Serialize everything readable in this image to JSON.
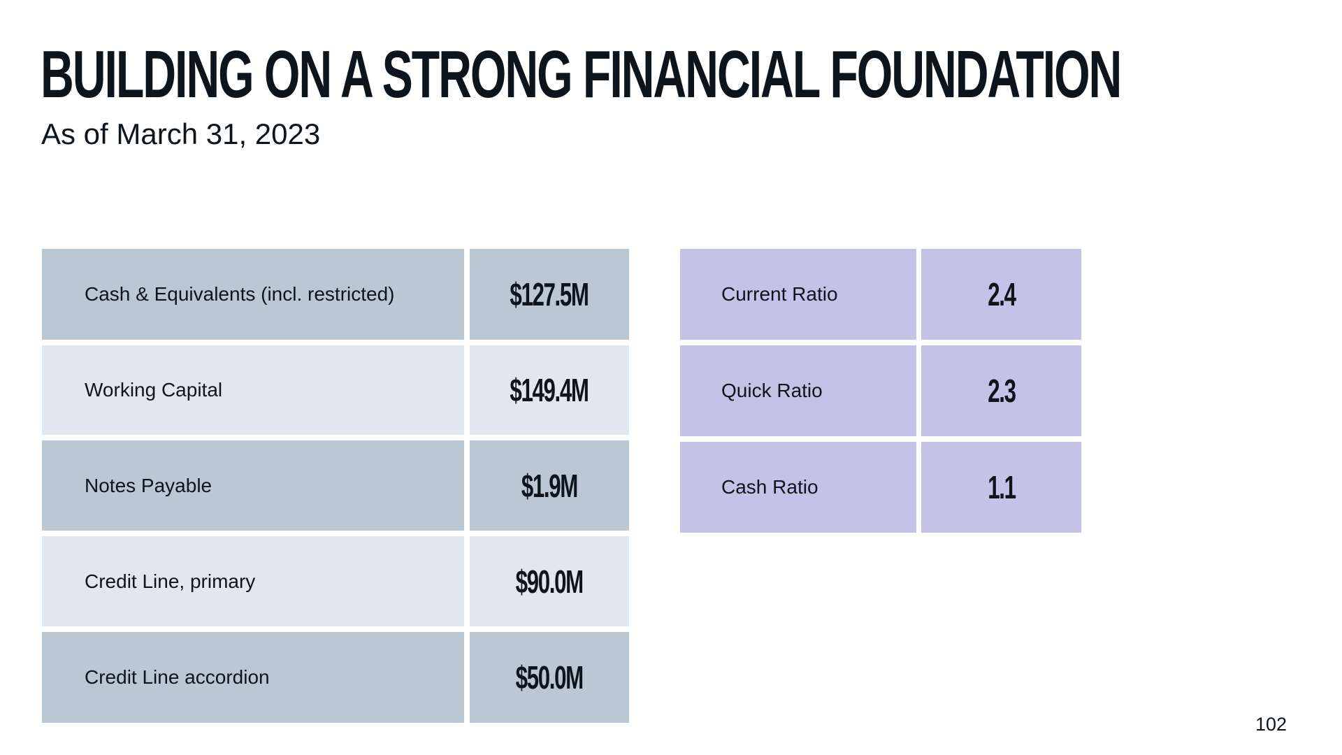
{
  "slide": {
    "title": "BUILDING ON A STRONG FINANCIAL FOUNDATION",
    "subtitle": "As of March 31, 2023",
    "page_number": "102"
  },
  "balance_table": {
    "rows": [
      {
        "label": "Cash & Equivalents (incl. restricted)",
        "value": "$127.5M"
      },
      {
        "label": "Working Capital",
        "value": "$149.4M"
      },
      {
        "label": "Notes Payable",
        "value": "$1.9M"
      },
      {
        "label": "Credit Line, primary",
        "value": "$90.0M"
      },
      {
        "label": "Credit Line accordion",
        "value": "$50.0M"
      }
    ]
  },
  "ratio_table": {
    "rows": [
      {
        "label": "Current Ratio",
        "value": "2.4"
      },
      {
        "label": "Quick Ratio",
        "value": "2.3"
      },
      {
        "label": "Cash Ratio",
        "value": "1.1"
      }
    ]
  },
  "colors": {
    "row_dark": "#bbc7d2",
    "row_light": "#e0e7f0",
    "ratio_bg": "#c4c3e7",
    "text": "#0e141b"
  }
}
